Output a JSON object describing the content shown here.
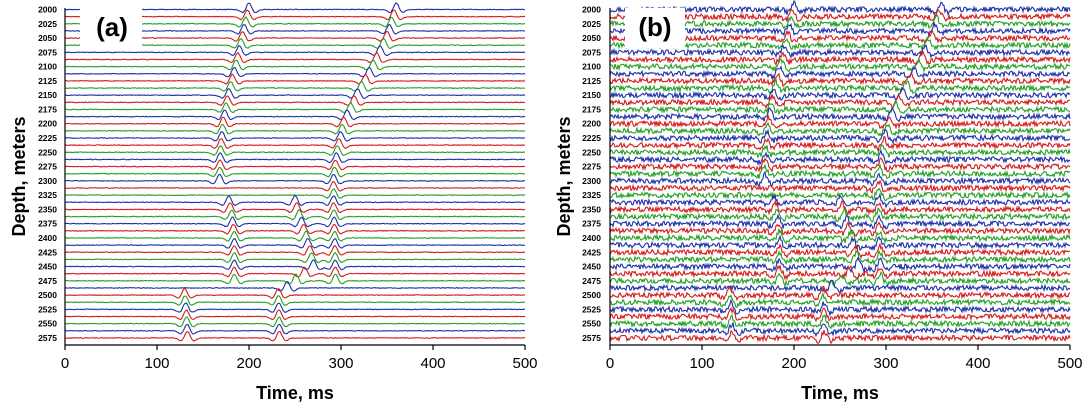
{
  "chart_data": [
    {
      "type": "line",
      "panel_label": "(a)",
      "xlabel": "Time, ms",
      "ylabel": "Depth, meters",
      "xlim": [
        0,
        500
      ],
      "xticks": [
        0,
        100,
        200,
        300,
        400,
        500
      ],
      "ytick_labels": [
        2000,
        2025,
        2050,
        2075,
        2100,
        2125,
        2150,
        2175,
        2200,
        2225,
        2250,
        2275,
        2300,
        2325,
        2350,
        2375,
        2400,
        2425,
        2450,
        2475,
        2500,
        2525,
        2550,
        2575
      ],
      "depth_range": [
        2000,
        2590
      ],
      "trace_spacing_m": 12.5,
      "trace_colors": [
        "#1c2fa8",
        "#d41a1a",
        "#21a021"
      ],
      "noise": "low",
      "events": [
        {
          "name": "",
          "points": [
            [
              2000,
              200
            ],
            [
              2050,
              193
            ],
            [
              2100,
              186
            ],
            [
              2150,
              178
            ],
            [
              2200,
              172
            ],
            [
              2250,
              169
            ],
            [
              2300,
              168
            ]
          ]
        },
        {
          "name": "",
          "points": [
            [
              2340,
              178
            ],
            [
              2360,
              181
            ],
            [
              2400,
              184
            ],
            [
              2475,
              184
            ]
          ]
        },
        {
          "name": "",
          "points": [
            [
              2500,
              130
            ],
            [
              2540,
              132
            ],
            [
              2575,
              133
            ]
          ]
        },
        {
          "name": "",
          "points": [
            [
              2000,
              360
            ],
            [
              2050,
              350
            ],
            [
              2100,
              335
            ],
            [
              2150,
              318
            ],
            [
              2200,
              303
            ],
            [
              2250,
              296
            ],
            [
              2300,
              292
            ],
            [
              2350,
              292
            ],
            [
              2400,
              293
            ],
            [
              2475,
              294
            ]
          ]
        },
        {
          "name": "",
          "points": [
            [
              2340,
              250
            ],
            [
              2400,
              262
            ],
            [
              2450,
              270
            ],
            [
              2500,
              232
            ],
            [
              2575,
              233
            ]
          ]
        }
      ]
    },
    {
      "type": "line",
      "panel_label": "(b)",
      "xlabel": "Time, ms",
      "ylabel": "Depth, meters",
      "xlim": [
        0,
        500
      ],
      "xticks": [
        0,
        100,
        200,
        300,
        400,
        500
      ],
      "ytick_labels": [
        2000,
        2025,
        2050,
        2075,
        2100,
        2125,
        2150,
        2175,
        2200,
        2225,
        2250,
        2275,
        2300,
        2325,
        2350,
        2375,
        2400,
        2425,
        2450,
        2475,
        2500,
        2525,
        2550,
        2575
      ],
      "depth_range": [
        2000,
        2590
      ],
      "trace_spacing_m": 12.5,
      "trace_colors": [
        "#1c2fa8",
        "#d41a1a",
        "#21a021"
      ],
      "noise": "high",
      "events": [
        {
          "name": "",
          "points": [
            [
              2000,
              200
            ],
            [
              2050,
              193
            ],
            [
              2100,
              186
            ],
            [
              2150,
              178
            ],
            [
              2200,
              172
            ],
            [
              2250,
              169
            ],
            [
              2300,
              168
            ]
          ]
        },
        {
          "name": "",
          "points": [
            [
              2340,
              178
            ],
            [
              2360,
              181
            ],
            [
              2400,
              184
            ],
            [
              2475,
              184
            ]
          ]
        },
        {
          "name": "",
          "points": [
            [
              2500,
              130
            ],
            [
              2540,
              132
            ],
            [
              2575,
              133
            ]
          ]
        },
        {
          "name": "",
          "points": [
            [
              2000,
              360
            ],
            [
              2050,
              350
            ],
            [
              2100,
              335
            ],
            [
              2150,
              318
            ],
            [
              2200,
              303
            ],
            [
              2250,
              296
            ],
            [
              2300,
              292
            ],
            [
              2350,
              292
            ],
            [
              2400,
              293
            ],
            [
              2475,
              294
            ]
          ]
        },
        {
          "name": "",
          "points": [
            [
              2340,
              250
            ],
            [
              2400,
              262
            ],
            [
              2450,
              270
            ],
            [
              2500,
              232
            ],
            [
              2575,
              233
            ]
          ]
        }
      ]
    }
  ]
}
